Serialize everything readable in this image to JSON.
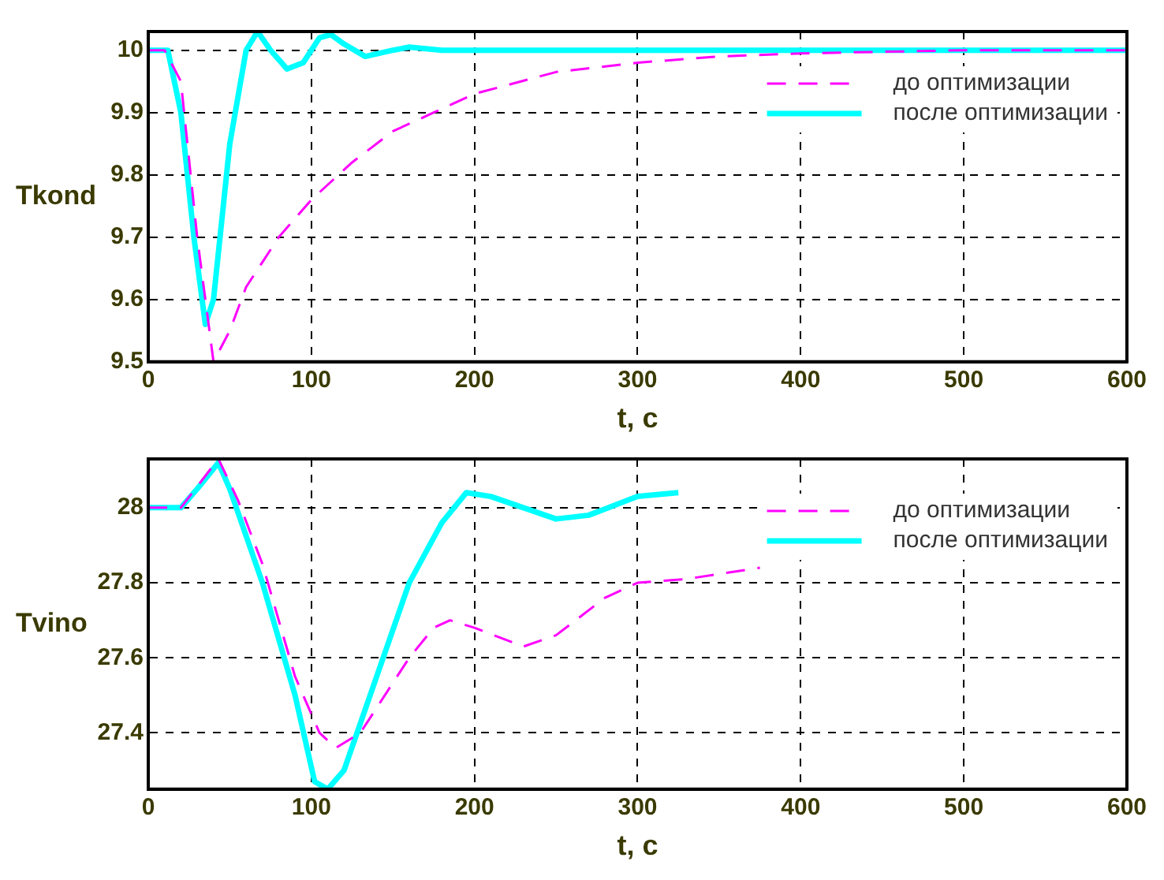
{
  "chart_data": [
    {
      "type": "line",
      "xlabel": "t, с",
      "ylabel": "Tkond",
      "xlim": [
        0,
        600
      ],
      "xticks": [
        0,
        100,
        200,
        300,
        400,
        500,
        600
      ],
      "ylim": [
        9.5,
        10.03
      ],
      "yticks": [
        9.5,
        9.6,
        9.7,
        9.8,
        9.9,
        10
      ],
      "grid": true,
      "legend": "top right",
      "series": [
        {
          "name": "до оптимизации",
          "color": "#ff00ff",
          "line_style": "dashed",
          "x": [
            0,
            10,
            20,
            30,
            40,
            50,
            60,
            80,
            100,
            125,
            150,
            175,
            200,
            250,
            300,
            350,
            400,
            500,
            600
          ],
          "values": [
            10,
            10,
            9.95,
            9.7,
            9.5,
            9.55,
            9.62,
            9.7,
            9.76,
            9.82,
            9.87,
            9.9,
            9.93,
            9.965,
            9.98,
            9.99,
            9.995,
            10,
            10
          ]
        },
        {
          "name": "после оптимизации",
          "color": "#00ffff",
          "line_style": "solid",
          "x": [
            0,
            12,
            20,
            28,
            35,
            40,
            50,
            60,
            67,
            75,
            85,
            95,
            105,
            112,
            120,
            133,
            150,
            160,
            180,
            250,
            600
          ],
          "values": [
            10,
            10,
            9.9,
            9.7,
            9.56,
            9.6,
            9.85,
            10,
            10.03,
            10,
            9.97,
            9.98,
            10.02,
            10.025,
            10.01,
            9.99,
            10,
            10.005,
            10,
            10,
            10
          ]
        }
      ]
    },
    {
      "type": "line",
      "xlabel": "t, с",
      "ylabel": "Tvino",
      "xlim": [
        0,
        600
      ],
      "xticks": [
        0,
        100,
        200,
        300,
        400,
        500,
        600
      ],
      "ylim": [
        27.25,
        28.13
      ],
      "yticks": [
        27.4,
        27.6,
        27.8,
        28
      ],
      "grid": true,
      "legend": "top right",
      "series": [
        {
          "name": "до оптимизации",
          "color": "#ff00ff",
          "line_style": "dashed",
          "x": [
            0,
            20,
            43,
            55,
            70,
            90,
            105,
            115,
            130,
            160,
            175,
            185,
            200,
            230,
            250,
            280,
            300,
            330,
            375
          ],
          "values": [
            28,
            28,
            28.13,
            28.02,
            27.85,
            27.55,
            27.4,
            27.36,
            27.4,
            27.6,
            27.68,
            27.7,
            27.68,
            27.63,
            27.66,
            27.76,
            27.8,
            27.81,
            27.84
          ]
        },
        {
          "name": "после оптимизации",
          "color": "#00ffff",
          "line_style": "solid",
          "x": [
            0,
            20,
            30,
            43,
            50,
            70,
            90,
            102,
            110,
            120,
            140,
            160,
            180,
            195,
            210,
            230,
            250,
            270,
            300,
            325
          ],
          "values": [
            28,
            28,
            28.05,
            28.12,
            28.05,
            27.8,
            27.5,
            27.27,
            27.25,
            27.3,
            27.55,
            27.8,
            27.96,
            28.04,
            28.03,
            28,
            27.97,
            27.98,
            28.03,
            28.04
          ]
        }
      ]
    }
  ]
}
